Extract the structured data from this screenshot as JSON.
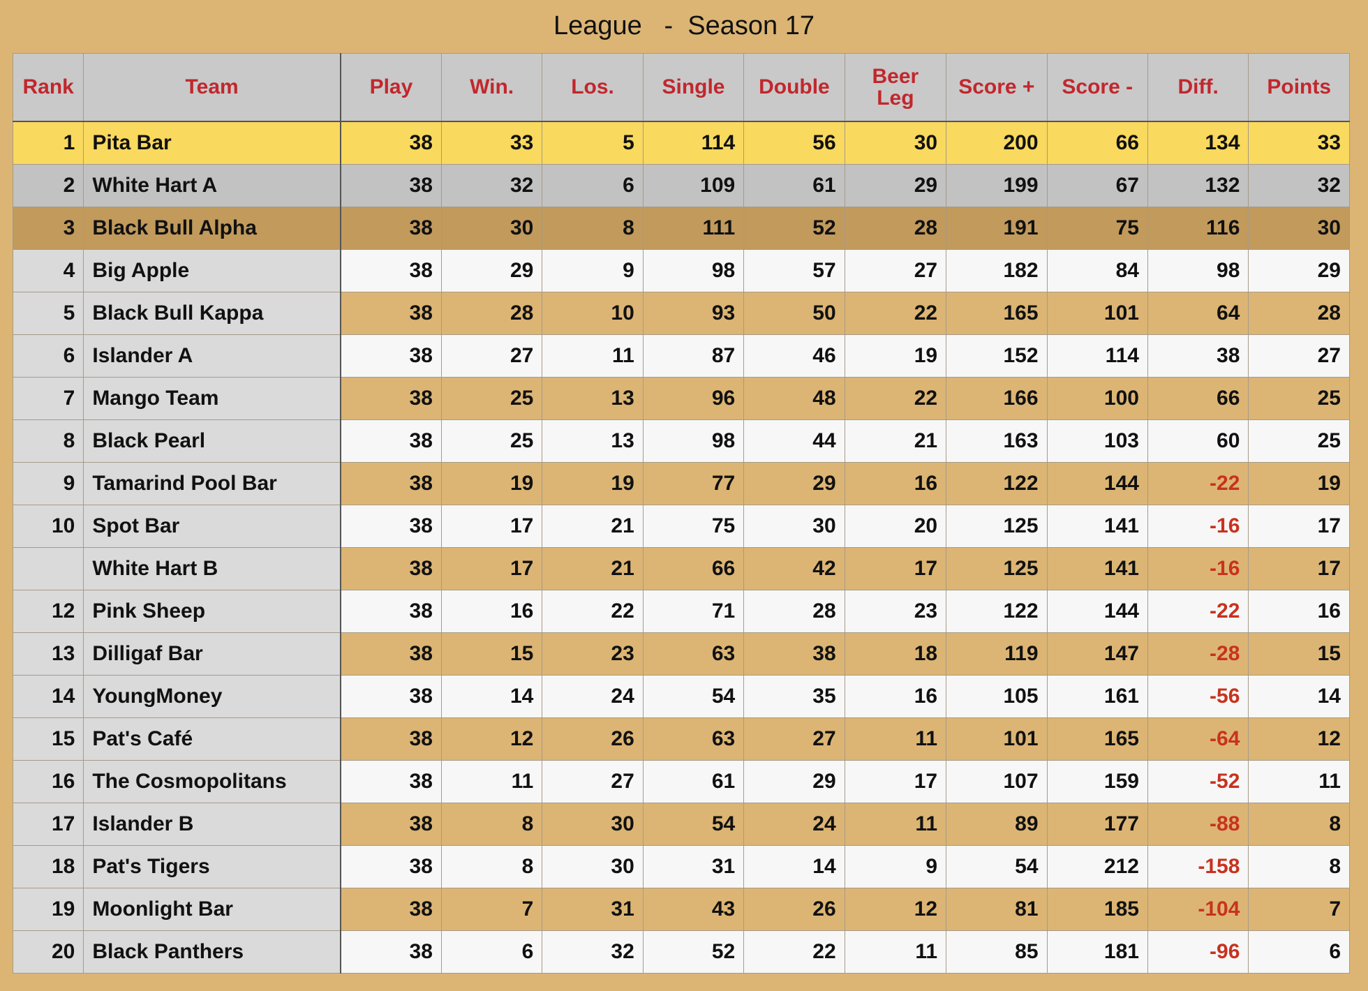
{
  "title": "League   -  Season 17",
  "colors": {
    "header_text": "#c1272d",
    "negative": "#c8321e",
    "gold": "#f9d95e",
    "silver": "#c2c2c2",
    "bronze": "#c19a5c",
    "background": "#dcb574"
  },
  "columns": [
    "Rank",
    "Team",
    "Play",
    "Win.",
    "Los.",
    "Single",
    "Double",
    "Beer Leg",
    "Score +",
    "Score -",
    "Diff.",
    "Points"
  ],
  "rows": [
    {
      "rank": "1",
      "team": "Pita Bar",
      "play": "38",
      "win": "33",
      "los": "5",
      "single": "114",
      "double": "56",
      "beer_leg": "30",
      "score_plus": "200",
      "score_minus": "66",
      "diff": "134",
      "points": "33"
    },
    {
      "rank": "2",
      "team": "White Hart A",
      "play": "38",
      "win": "32",
      "los": "6",
      "single": "109",
      "double": "61",
      "beer_leg": "29",
      "score_plus": "199",
      "score_minus": "67",
      "diff": "132",
      "points": "32"
    },
    {
      "rank": "3",
      "team": "Black Bull Alpha",
      "play": "38",
      "win": "30",
      "los": "8",
      "single": "111",
      "double": "52",
      "beer_leg": "28",
      "score_plus": "191",
      "score_minus": "75",
      "diff": "116",
      "points": "30"
    },
    {
      "rank": "4",
      "team": "Big Apple",
      "play": "38",
      "win": "29",
      "los": "9",
      "single": "98",
      "double": "57",
      "beer_leg": "27",
      "score_plus": "182",
      "score_minus": "84",
      "diff": "98",
      "points": "29"
    },
    {
      "rank": "5",
      "team": "Black Bull Kappa",
      "play": "38",
      "win": "28",
      "los": "10",
      "single": "93",
      "double": "50",
      "beer_leg": "22",
      "score_plus": "165",
      "score_minus": "101",
      "diff": "64",
      "points": "28"
    },
    {
      "rank": "6",
      "team": "Islander A",
      "play": "38",
      "win": "27",
      "los": "11",
      "single": "87",
      "double": "46",
      "beer_leg": "19",
      "score_plus": "152",
      "score_minus": "114",
      "diff": "38",
      "points": "27"
    },
    {
      "rank": "7",
      "team": "Mango Team",
      "play": "38",
      "win": "25",
      "los": "13",
      "single": "96",
      "double": "48",
      "beer_leg": "22",
      "score_plus": "166",
      "score_minus": "100",
      "diff": "66",
      "points": "25"
    },
    {
      "rank": "8",
      "team": "Black Pearl",
      "play": "38",
      "win": "25",
      "los": "13",
      "single": "98",
      "double": "44",
      "beer_leg": "21",
      "score_plus": "163",
      "score_minus": "103",
      "diff": "60",
      "points": "25"
    },
    {
      "rank": "9",
      "team": "Tamarind Pool Bar",
      "play": "38",
      "win": "19",
      "los": "19",
      "single": "77",
      "double": "29",
      "beer_leg": "16",
      "score_plus": "122",
      "score_minus": "144",
      "diff": "-22",
      "points": "19"
    },
    {
      "rank": "10",
      "team": "Spot Bar",
      "play": "38",
      "win": "17",
      "los": "21",
      "single": "75",
      "double": "30",
      "beer_leg": "20",
      "score_plus": "125",
      "score_minus": "141",
      "diff": "-16",
      "points": "17"
    },
    {
      "rank": "",
      "team": "White Hart B",
      "play": "38",
      "win": "17",
      "los": "21",
      "single": "66",
      "double": "42",
      "beer_leg": "17",
      "score_plus": "125",
      "score_minus": "141",
      "diff": "-16",
      "points": "17"
    },
    {
      "rank": "12",
      "team": "Pink Sheep",
      "play": "38",
      "win": "16",
      "los": "22",
      "single": "71",
      "double": "28",
      "beer_leg": "23",
      "score_plus": "122",
      "score_minus": "144",
      "diff": "-22",
      "points": "16"
    },
    {
      "rank": "13",
      "team": "Dilligaf Bar",
      "play": "38",
      "win": "15",
      "los": "23",
      "single": "63",
      "double": "38",
      "beer_leg": "18",
      "score_plus": "119",
      "score_minus": "147",
      "diff": "-28",
      "points": "15"
    },
    {
      "rank": "14",
      "team": "YoungMoney",
      "play": "38",
      "win": "14",
      "los": "24",
      "single": "54",
      "double": "35",
      "beer_leg": "16",
      "score_plus": "105",
      "score_minus": "161",
      "diff": "-56",
      "points": "14"
    },
    {
      "rank": "15",
      "team": "Pat's Café",
      "play": "38",
      "win": "12",
      "los": "26",
      "single": "63",
      "double": "27",
      "beer_leg": "11",
      "score_plus": "101",
      "score_minus": "165",
      "diff": "-64",
      "points": "12"
    },
    {
      "rank": "16",
      "team": "The Cosmopolitans",
      "play": "38",
      "win": "11",
      "los": "27",
      "single": "61",
      "double": "29",
      "beer_leg": "17",
      "score_plus": "107",
      "score_minus": "159",
      "diff": "-52",
      "points": "11"
    },
    {
      "rank": "17",
      "team": "Islander B",
      "play": "38",
      "win": "8",
      "los": "30",
      "single": "54",
      "double": "24",
      "beer_leg": "11",
      "score_plus": "89",
      "score_minus": "177",
      "diff": "-88",
      "points": "8"
    },
    {
      "rank": "18",
      "team": "Pat's Tigers",
      "play": "38",
      "win": "8",
      "los": "30",
      "single": "31",
      "double": "14",
      "beer_leg": "9",
      "score_plus": "54",
      "score_minus": "212",
      "diff": "-158",
      "points": "8"
    },
    {
      "rank": "19",
      "team": "Moonlight Bar",
      "play": "38",
      "win": "7",
      "los": "31",
      "single": "43",
      "double": "26",
      "beer_leg": "12",
      "score_plus": "81",
      "score_minus": "185",
      "diff": "-104",
      "points": "7"
    },
    {
      "rank": "20",
      "team": "Black Panthers",
      "play": "38",
      "win": "6",
      "los": "32",
      "single": "52",
      "double": "22",
      "beer_leg": "11",
      "score_plus": "85",
      "score_minus": "181",
      "diff": "-96",
      "points": "6"
    }
  ]
}
